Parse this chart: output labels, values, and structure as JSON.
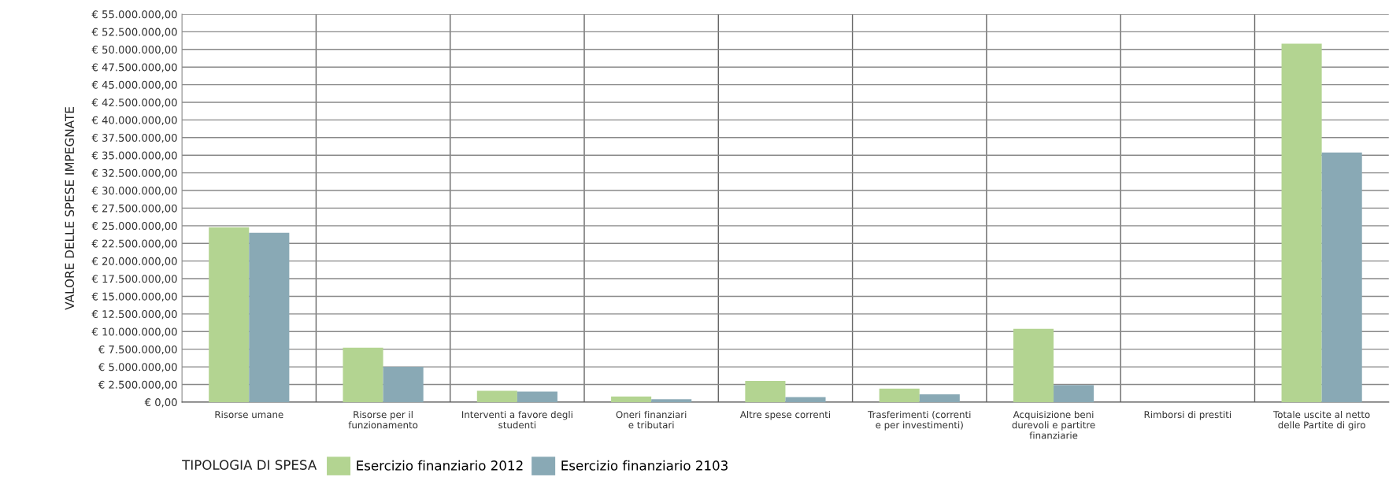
{
  "chart_data": {
    "type": "bar",
    "ylabel": "VALORE DELLE SPESE IMPEGNATE",
    "legend_title": "TIPOLOGIA DI SPESA",
    "legend": "bottom",
    "grid": true,
    "categories": [
      "Risorse umane",
      "Risorse per il\nfunzionamento",
      "Interventi a favore degli\nstudenti",
      "Oneri finanziari\ne tributari",
      "Altre spese correnti",
      "Trasferimenti (correnti\ne per investimenti)",
      "Acquisizione beni\ndurevoli e partitre\nfinanziarie",
      "Rimborsi di prestiti",
      "Totale uscite al netto\ndelle Partite di giro"
    ],
    "series": [
      {
        "name": "Esercizio finanziario 2012",
        "color": "#b3d491",
        "values": [
          24800000,
          7700000,
          1600000,
          800000,
          3000000,
          1900000,
          10400000,
          0,
          50800000
        ]
      },
      {
        "name": "Esercizio finanziario 2103",
        "color": "#89a9b5",
        "values": [
          24000000,
          5000000,
          1500000,
          400000,
          700000,
          1100000,
          2400000,
          0,
          35400000
        ]
      }
    ],
    "ylim": [
      0,
      55000000
    ],
    "yticks": [
      {
        "value": 0,
        "label": "€ 0,00"
      },
      {
        "value": 2500000,
        "label": "€ 2.500.000,00"
      },
      {
        "value": 5000000,
        "label": "€ 5.000.000,00"
      },
      {
        "value": 7500000,
        "label": "€ 7.500.000,00"
      },
      {
        "value": 10000000,
        "label": "€ 10.000.000,00"
      },
      {
        "value": 12500000,
        "label": "€ 12.500.000,00"
      },
      {
        "value": 15000000,
        "label": "€ 15.000.000,00"
      },
      {
        "value": 17500000,
        "label": "€ 17.500.000,00"
      },
      {
        "value": 20000000,
        "label": "€ 20.000.000,00"
      },
      {
        "value": 22500000,
        "label": "€ 22.500.000,00"
      },
      {
        "value": 25000000,
        "label": "€ 25.000.000,00"
      },
      {
        "value": 27500000,
        "label": "€ 27.500.000,00"
      },
      {
        "value": 30000000,
        "label": "€ 30.000.000,00"
      },
      {
        "value": 32500000,
        "label": "€ 32.500.000,00"
      },
      {
        "value": 35000000,
        "label": "€ 35.000.000,00"
      },
      {
        "value": 37500000,
        "label": "€ 37.500.000,00"
      },
      {
        "value": 40000000,
        "label": "€ 40.000.000,00"
      },
      {
        "value": 42500000,
        "label": "€ 42.500.000,00"
      },
      {
        "value": 45000000,
        "label": "€ 45.000.000,00"
      },
      {
        "value": 47500000,
        "label": "€ 47.500.000,00"
      },
      {
        "value": 50000000,
        "label": "€ 50.000.000,00"
      },
      {
        "value": 52500000,
        "label": "€ 52.500.000,00"
      },
      {
        "value": 55000000,
        "label": "€ 55.000.000,00"
      }
    ]
  }
}
